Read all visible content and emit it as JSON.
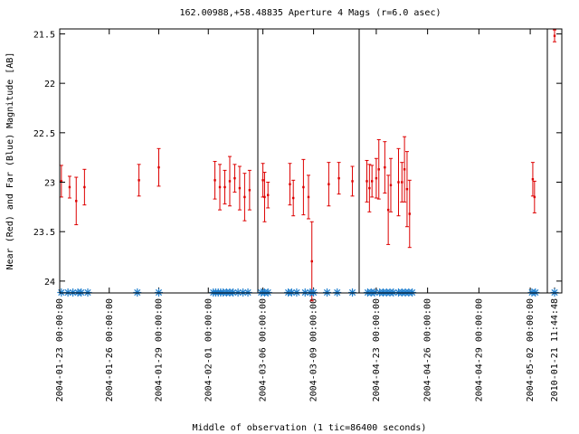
{
  "chart_data": {
    "type": "scatter",
    "title": "162.00988,+58.48835   Aperture 4 Mags (r=6.0 asec)",
    "xlabel": "Middle of observation (1 tic=86400 seconds)",
    "ylabel": "Near (Red) and Far (Blue) Magnitude [AB]",
    "y_inverted": true,
    "ylim": [
      21.45,
      24.12
    ],
    "yticks": [
      21.5,
      22,
      22.5,
      23,
      23.5,
      24
    ],
    "ytick_labels": [
      "21.5",
      "22",
      "22.5",
      "23",
      "23.5",
      "24"
    ],
    "grid": false,
    "colors": {
      "red": "#dd0000",
      "blue": "#1f7fcf"
    },
    "panels": [
      {
        "name": "segment-1",
        "xrange_days": [
          0,
          12
        ],
        "ticks": [
          {
            "day": 0,
            "label": "2004-01-23 00:00:00"
          },
          {
            "day": 3,
            "label": "2004-01-26 00:00:00"
          },
          {
            "day": 6,
            "label": "2004-01-29 00:00:00"
          },
          {
            "day": 9,
            "label": "2004-02-01 00:00:00"
          }
        ],
        "red": [
          {
            "d": 0.1,
            "m": 22.99,
            "e": 0.16
          },
          {
            "d": 0.6,
            "m": 23.05,
            "e": 0.11
          },
          {
            "d": 1.0,
            "m": 23.19,
            "e": 0.24
          },
          {
            "d": 1.5,
            "m": 23.05,
            "e": 0.18
          },
          {
            "d": 4.8,
            "m": 22.98,
            "e": 0.16
          },
          {
            "d": 6.0,
            "m": 22.85,
            "e": 0.19
          },
          {
            "d": 9.4,
            "m": 22.98,
            "e": 0.19
          },
          {
            "d": 9.7,
            "m": 23.05,
            "e": 0.23
          },
          {
            "d": 10.0,
            "m": 23.05,
            "e": 0.17
          },
          {
            "d": 10.3,
            "m": 22.99,
            "e": 0.25
          },
          {
            "d": 10.6,
            "m": 22.96,
            "e": 0.14
          },
          {
            "d": 10.9,
            "m": 23.06,
            "e": 0.22
          },
          {
            "d": 11.2,
            "m": 23.15,
            "e": 0.24
          },
          {
            "d": 11.5,
            "m": 23.08,
            "e": 0.2
          }
        ],
        "blue": [
          0.1,
          0.5,
          0.8,
          1.1,
          1.3,
          1.7,
          4.7,
          6.0,
          9.3,
          9.45,
          9.6,
          9.75,
          9.9,
          10.1,
          10.3,
          10.5,
          10.8,
          11.1,
          11.4
        ]
      },
      {
        "name": "segment-2",
        "xrange_days": [
          0,
          6
        ],
        "ticks": [
          {
            "day": 0.3,
            "label": "2004-03-06 00:00:00"
          },
          {
            "day": 3.3,
            "label": "2004-03-09 00:00:00"
          }
        ],
        "red": [
          {
            "d": 0.3,
            "m": 22.98,
            "e": 0.17
          },
          {
            "d": 0.4,
            "m": 23.15,
            "e": 0.25
          },
          {
            "d": 0.6,
            "m": 23.13,
            "e": 0.13
          },
          {
            "d": 1.9,
            "m": 23.02,
            "e": 0.21
          },
          {
            "d": 2.1,
            "m": 23.16,
            "e": 0.18
          },
          {
            "d": 2.7,
            "m": 23.05,
            "e": 0.28
          },
          {
            "d": 3.0,
            "m": 23.15,
            "e": 0.22
          },
          {
            "d": 3.2,
            "m": 23.8,
            "e": 0.4
          },
          {
            "d": 4.2,
            "m": 23.02,
            "e": 0.22
          },
          {
            "d": 4.8,
            "m": 22.96,
            "e": 0.16
          },
          {
            "d": 5.6,
            "m": 22.99,
            "e": 0.15
          }
        ],
        "blue": [
          0.2,
          0.4,
          0.6,
          1.8,
          2.0,
          2.3,
          2.8,
          3.1,
          3.3,
          4.1,
          4.7,
          5.6
        ]
      },
      {
        "name": "segment-3",
        "xrange_days": [
          0,
          11
        ],
        "ticks": [
          {
            "day": 1.0,
            "label": "2004-04-23 00:00:00"
          },
          {
            "day": 4.0,
            "label": "2004-04-26 00:00:00"
          },
          {
            "day": 7.0,
            "label": "2004-04-29 00:00:00"
          },
          {
            "day": 10.0,
            "label": "2004-05-02 00:00:00"
          }
        ],
        "red": [
          {
            "d": 0.45,
            "m": 22.99,
            "e": 0.21
          },
          {
            "d": 0.6,
            "m": 23.06,
            "e": 0.24
          },
          {
            "d": 0.75,
            "m": 22.99,
            "e": 0.16
          },
          {
            "d": 1.0,
            "m": 22.96,
            "e": 0.2
          },
          {
            "d": 1.15,
            "m": 22.87,
            "e": 0.3
          },
          {
            "d": 1.5,
            "m": 22.85,
            "e": 0.26
          },
          {
            "d": 1.7,
            "m": 23.28,
            "e": 0.35
          },
          {
            "d": 1.85,
            "m": 23.03,
            "e": 0.27
          },
          {
            "d": 2.3,
            "m": 23.0,
            "e": 0.34
          },
          {
            "d": 2.5,
            "m": 23.0,
            "e": 0.2
          },
          {
            "d": 2.65,
            "m": 22.87,
            "e": 0.33
          },
          {
            "d": 2.8,
            "m": 23.07,
            "e": 0.38
          },
          {
            "d": 2.95,
            "m": 23.32,
            "e": 0.34
          },
          {
            "d": 10.15,
            "m": 22.97,
            "e": 0.17
          },
          {
            "d": 10.25,
            "m": 23.15,
            "e": 0.16
          }
        ],
        "blue": [
          0.5,
          0.7,
          0.9,
          1.2,
          1.4,
          1.6,
          1.8,
          2.0,
          2.3,
          2.5,
          2.7,
          2.9,
          3.1,
          10.1,
          10.3
        ]
      },
      {
        "name": "segment-4",
        "xrange_days": [
          0,
          1
        ],
        "ticks": [
          {
            "day": 0.5,
            "label": "2010-01-21 11:44:48"
          }
        ],
        "red": [
          {
            "d": 0.5,
            "m": 21.52,
            "e": 0.06
          }
        ],
        "blue": [
          0.5
        ]
      }
    ]
  }
}
